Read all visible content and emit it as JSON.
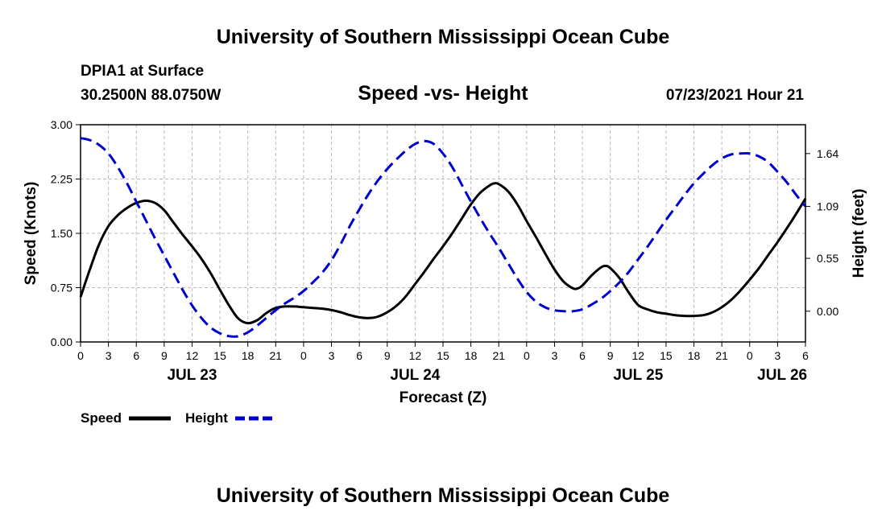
{
  "page": {
    "title": "University of Southern Mississippi Ocean Cube",
    "footer_title": "University of Southern Mississippi Ocean Cube",
    "station": "DPIA1 at Surface",
    "coords": "30.2500N  88.0750W",
    "datetime": "07/23/2021 Hour 21"
  },
  "chart_data": {
    "type": "line",
    "title": "Speed -vs- Height",
    "xlabel": "Forecast (Z)",
    "ylabel_left": "Speed (Knots)",
    "ylabel_right": "Height (feet)",
    "x_unit": "hours since 2021-07-23 00Z",
    "xlim": [
      0,
      78
    ],
    "ylim_left": [
      0,
      3.0
    ],
    "left_ticks": [
      {
        "v": 0,
        "label": "0.00"
      },
      {
        "v": 0.75,
        "label": "0.75"
      },
      {
        "v": 1.5,
        "label": "1.50"
      },
      {
        "v": 2.25,
        "label": "2.25"
      },
      {
        "v": 3.0,
        "label": "3.00"
      }
    ],
    "right_ticks": [
      {
        "v": 0,
        "label": "0.00"
      },
      {
        "v": 0.55,
        "label": "0.55"
      },
      {
        "v": 1.09,
        "label": "1.09"
      },
      {
        "v": 1.64,
        "label": "1.64"
      }
    ],
    "right_axis_map": {
      "height_at_speed_0": -0.32,
      "height_at_speed_3": 1.94
    },
    "x_ticks": [
      {
        "x": 0,
        "label": "0"
      },
      {
        "x": 3,
        "label": "3"
      },
      {
        "x": 6,
        "label": "6"
      },
      {
        "x": 9,
        "label": "9"
      },
      {
        "x": 12,
        "label": "12"
      },
      {
        "x": 15,
        "label": "15"
      },
      {
        "x": 18,
        "label": "18"
      },
      {
        "x": 21,
        "label": "21"
      },
      {
        "x": 24,
        "label": "0"
      },
      {
        "x": 27,
        "label": "3"
      },
      {
        "x": 30,
        "label": "6"
      },
      {
        "x": 33,
        "label": "9"
      },
      {
        "x": 36,
        "label": "12"
      },
      {
        "x": 39,
        "label": "15"
      },
      {
        "x": 42,
        "label": "18"
      },
      {
        "x": 45,
        "label": "21"
      },
      {
        "x": 48,
        "label": "0"
      },
      {
        "x": 51,
        "label": "3"
      },
      {
        "x": 54,
        "label": "6"
      },
      {
        "x": 57,
        "label": "9"
      },
      {
        "x": 60,
        "label": "12"
      },
      {
        "x": 63,
        "label": "15"
      },
      {
        "x": 66,
        "label": "18"
      },
      {
        "x": 69,
        "label": "21"
      },
      {
        "x": 72,
        "label": "0"
      },
      {
        "x": 75,
        "label": "3"
      },
      {
        "x": 78,
        "label": "6"
      }
    ],
    "date_labels": [
      {
        "x": 12,
        "label": "JUL 23"
      },
      {
        "x": 36,
        "label": "JUL 24"
      },
      {
        "x": 60,
        "label": "JUL 25"
      },
      {
        "x": 75.5,
        "label": "JUL 26"
      }
    ],
    "grid": true,
    "legend": {
      "position": "bottom-left"
    },
    "series": [
      {
        "name": "Speed",
        "color": "#000000",
        "style": "solid",
        "axis": "left",
        "points": [
          [
            0,
            0.62
          ],
          [
            1,
            1.0
          ],
          [
            2,
            1.35
          ],
          [
            3,
            1.6
          ],
          [
            4,
            1.75
          ],
          [
            5,
            1.85
          ],
          [
            6,
            1.92
          ],
          [
            7,
            1.95
          ],
          [
            8,
            1.92
          ],
          [
            9,
            1.82
          ],
          [
            10,
            1.65
          ],
          [
            11,
            1.48
          ],
          [
            12,
            1.32
          ],
          [
            13,
            1.15
          ],
          [
            14,
            0.95
          ],
          [
            15,
            0.72
          ],
          [
            16,
            0.5
          ],
          [
            17,
            0.32
          ],
          [
            18,
            0.26
          ],
          [
            19,
            0.3
          ],
          [
            20,
            0.4
          ],
          [
            21,
            0.47
          ],
          [
            22,
            0.49
          ],
          [
            23,
            0.49
          ],
          [
            24,
            0.48
          ],
          [
            25,
            0.47
          ],
          [
            26,
            0.46
          ],
          [
            27,
            0.44
          ],
          [
            28,
            0.41
          ],
          [
            29,
            0.37
          ],
          [
            30,
            0.34
          ],
          [
            31,
            0.33
          ],
          [
            32,
            0.35
          ],
          [
            33,
            0.41
          ],
          [
            34,
            0.5
          ],
          [
            35,
            0.63
          ],
          [
            36,
            0.8
          ],
          [
            37,
            0.97
          ],
          [
            38,
            1.15
          ],
          [
            39,
            1.32
          ],
          [
            40,
            1.5
          ],
          [
            41,
            1.7
          ],
          [
            42,
            1.9
          ],
          [
            43,
            2.06
          ],
          [
            44,
            2.16
          ],
          [
            44.5,
            2.19
          ],
          [
            45,
            2.18
          ],
          [
            46,
            2.08
          ],
          [
            47,
            1.9
          ],
          [
            48,
            1.67
          ],
          [
            49,
            1.45
          ],
          [
            50,
            1.22
          ],
          [
            51,
            1.0
          ],
          [
            52,
            0.83
          ],
          [
            53,
            0.74
          ],
          [
            53.5,
            0.74
          ],
          [
            54,
            0.78
          ],
          [
            55,
            0.92
          ],
          [
            56,
            1.03
          ],
          [
            56.5,
            1.05
          ],
          [
            57,
            1.02
          ],
          [
            58,
            0.88
          ],
          [
            59,
            0.68
          ],
          [
            60,
            0.51
          ],
          [
            61,
            0.45
          ],
          [
            62,
            0.41
          ],
          [
            63,
            0.39
          ],
          [
            64,
            0.37
          ],
          [
            65,
            0.36
          ],
          [
            66,
            0.36
          ],
          [
            67,
            0.37
          ],
          [
            68,
            0.41
          ],
          [
            69,
            0.48
          ],
          [
            70,
            0.58
          ],
          [
            71,
            0.71
          ],
          [
            72,
            0.86
          ],
          [
            73,
            1.02
          ],
          [
            74,
            1.2
          ],
          [
            75,
            1.38
          ],
          [
            76,
            1.57
          ],
          [
            77,
            1.77
          ],
          [
            78,
            1.98
          ]
        ]
      },
      {
        "name": "Height",
        "color": "#0000cc",
        "style": "dashed",
        "axis": "right",
        "points": [
          [
            0,
            1.8
          ],
          [
            1,
            1.78
          ],
          [
            2,
            1.73
          ],
          [
            3,
            1.64
          ],
          [
            4,
            1.5
          ],
          [
            5,
            1.33
          ],
          [
            6,
            1.14
          ],
          [
            7,
            0.95
          ],
          [
            8,
            0.76
          ],
          [
            9,
            0.58
          ],
          [
            10,
            0.4
          ],
          [
            11,
            0.22
          ],
          [
            12,
            0.06
          ],
          [
            13,
            -0.07
          ],
          [
            14,
            -0.17
          ],
          [
            15,
            -0.23
          ],
          [
            16,
            -0.26
          ],
          [
            17,
            -0.26
          ],
          [
            18,
            -0.22
          ],
          [
            19,
            -0.15
          ],
          [
            20,
            -0.07
          ],
          [
            21,
            0.01
          ],
          [
            22,
            0.08
          ],
          [
            23,
            0.14
          ],
          [
            24,
            0.21
          ],
          [
            25,
            0.3
          ],
          [
            26,
            0.4
          ],
          [
            27,
            0.53
          ],
          [
            28,
            0.7
          ],
          [
            29,
            0.89
          ],
          [
            30,
            1.06
          ],
          [
            31,
            1.22
          ],
          [
            32,
            1.36
          ],
          [
            33,
            1.48
          ],
          [
            34,
            1.58
          ],
          [
            35,
            1.67
          ],
          [
            36,
            1.74
          ],
          [
            37,
            1.77
          ],
          [
            38,
            1.74
          ],
          [
            39,
            1.64
          ],
          [
            40,
            1.5
          ],
          [
            41,
            1.32
          ],
          [
            42,
            1.14
          ],
          [
            43,
            0.97
          ],
          [
            44,
            0.81
          ],
          [
            45,
            0.66
          ],
          [
            46,
            0.5
          ],
          [
            47,
            0.34
          ],
          [
            48,
            0.2
          ],
          [
            49,
            0.1
          ],
          [
            50,
            0.04
          ],
          [
            51,
            0.01
          ],
          [
            52,
            0.0
          ],
          [
            53,
            0.0
          ],
          [
            54,
            0.02
          ],
          [
            55,
            0.07
          ],
          [
            56,
            0.13
          ],
          [
            57,
            0.21
          ],
          [
            58,
            0.3
          ],
          [
            59,
            0.41
          ],
          [
            60,
            0.54
          ],
          [
            61,
            0.67
          ],
          [
            62,
            0.81
          ],
          [
            63,
            0.95
          ],
          [
            64,
            1.08
          ],
          [
            65,
            1.21
          ],
          [
            66,
            1.33
          ],
          [
            67,
            1.43
          ],
          [
            68,
            1.52
          ],
          [
            69,
            1.59
          ],
          [
            70,
            1.63
          ],
          [
            71,
            1.64
          ],
          [
            72,
            1.64
          ],
          [
            73,
            1.61
          ],
          [
            74,
            1.55
          ],
          [
            75,
            1.45
          ],
          [
            76,
            1.34
          ],
          [
            77,
            1.21
          ],
          [
            78,
            1.09
          ]
        ]
      }
    ]
  }
}
